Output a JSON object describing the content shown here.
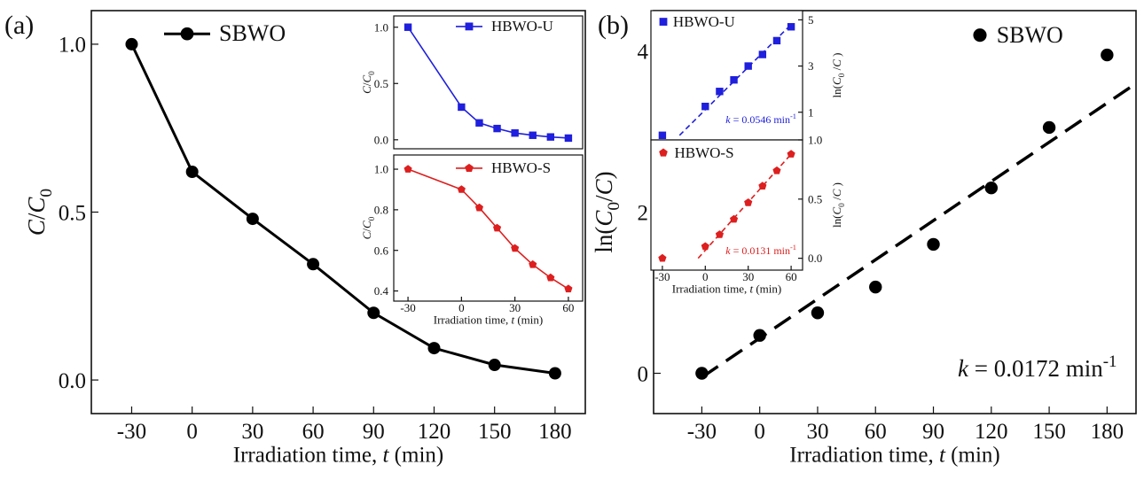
{
  "panel_labels": {
    "a": "(a)",
    "b": "(b)"
  },
  "chart_data": [
    {
      "id": "a_main",
      "type": "line",
      "panel": "(a)",
      "x": [
        -30,
        0,
        30,
        60,
        90,
        120,
        150,
        180
      ],
      "series": [
        {
          "name": "SBWO",
          "color": "#000000",
          "marker": "circle",
          "values": [
            1.0,
            0.62,
            0.48,
            0.345,
            0.2,
            0.095,
            0.045,
            0.02
          ]
        }
      ],
      "xlim": [
        -50,
        195
      ],
      "ylim": [
        -0.1,
        1.1
      ],
      "xticks": [
        -30,
        0,
        30,
        60,
        90,
        120,
        150,
        180
      ],
      "yticks": [
        0.0,
        0.5,
        1.0
      ],
      "ytick_labels": [
        "0.0",
        "0.5",
        "1.0"
      ],
      "xlabel": {
        "pre": "Irradiation time, ",
        "var": "t",
        "post": " (min)"
      },
      "ylabel": {
        "var": "C",
        "sep": "/",
        "var2": "C",
        "sub": "0"
      },
      "legend_position": "top-left",
      "grid": false
    },
    {
      "id": "a_inset_u",
      "type": "line",
      "panel": "(a) inset",
      "x": [
        -30,
        0,
        10,
        20,
        30,
        40,
        50,
        60
      ],
      "series": [
        {
          "name": "HBWO-U",
          "color": "#1f1fdd",
          "marker": "square",
          "values": [
            1.0,
            0.29,
            0.15,
            0.1,
            0.06,
            0.04,
            0.025,
            0.015
          ]
        }
      ],
      "xlim": [
        -38,
        68
      ],
      "ylim": [
        -0.08,
        1.1
      ],
      "yticks": [
        0.0,
        0.5,
        1.0
      ],
      "ytick_labels": [
        "0.0",
        "0.5",
        "1.0"
      ],
      "ylabel": {
        "var": "C",
        "sep": "/",
        "var2": "C",
        "sub": "0"
      },
      "legend_position": "top-right"
    },
    {
      "id": "a_inset_s",
      "type": "line",
      "panel": "(a) inset",
      "x": [
        -30,
        0,
        10,
        20,
        30,
        40,
        50,
        60
      ],
      "series": [
        {
          "name": "HBWO-S",
          "color": "#dd1f1f",
          "marker": "pentagon",
          "values": [
            1.0,
            0.9,
            0.81,
            0.71,
            0.61,
            0.53,
            0.465,
            0.41
          ]
        }
      ],
      "xlim": [
        -38,
        68
      ],
      "ylim": [
        0.35,
        1.07
      ],
      "xticks": [
        -30,
        0,
        30,
        60
      ],
      "yticks": [
        0.4,
        0.6,
        0.8,
        1.0
      ],
      "ytick_labels": [
        "0.4",
        "0.6",
        "0.8",
        "1.0"
      ],
      "xlabel": {
        "pre": "Irradiation time, ",
        "var": "t",
        "post": " (min)"
      },
      "ylabel": {
        "var": "C",
        "sep": "/",
        "var2": "C",
        "sub": "0"
      },
      "legend_position": "top-right"
    },
    {
      "id": "b_main",
      "type": "scatter",
      "panel": "(b)",
      "x": [
        -30,
        0,
        30,
        60,
        90,
        120,
        150,
        180
      ],
      "series": [
        {
          "name": "SBWO",
          "color": "#000000",
          "marker": "circle",
          "values": [
            0.0,
            0.47,
            0.75,
            1.07,
            1.6,
            2.3,
            3.05,
            3.95
          ]
        }
      ],
      "fit": {
        "x": [
          -30,
          194
        ],
        "y": [
          -0.05,
          3.58
        ],
        "style": "dashed",
        "color": "#000000"
      },
      "annotation": {
        "var": "k",
        "text": " = 0.0172 min",
        "sup": "-1"
      },
      "xlim": [
        -55,
        195
      ],
      "ylim": [
        -0.5,
        4.5
      ],
      "xticks": [
        -30,
        0,
        30,
        60,
        90,
        120,
        150,
        180
      ],
      "yticks": [
        0,
        2,
        4
      ],
      "ytick_labels": [
        "0",
        "2",
        "4"
      ],
      "xlabel": {
        "pre": "Irradiation time, ",
        "var": "t",
        "post": " (min)"
      },
      "ylabel": {
        "pre": "ln(",
        "var": "C",
        "sub": "0",
        "mid": "/",
        "var2": "C",
        "post": ")"
      },
      "legend_position": "top-right",
      "grid": false
    },
    {
      "id": "b_inset_u",
      "type": "scatter",
      "panel": "(b) inset",
      "x": [
        -30,
        0,
        10,
        20,
        30,
        40,
        50,
        60
      ],
      "series": [
        {
          "name": "HBWO-U",
          "color": "#1f1fdd",
          "marker": "square",
          "values": [
            0.0,
            1.25,
            1.9,
            2.4,
            3.0,
            3.5,
            4.1,
            4.7
          ]
        }
      ],
      "fit": {
        "x": [
          -18,
          60
        ],
        "y": [
          0.0,
          4.8
        ],
        "style": "dashed",
        "color": "#1f1fdd"
      },
      "annotation": {
        "var": "k",
        "text": " = 0.0546 min",
        "sup": "-1"
      },
      "xlim": [
        -38,
        68
      ],
      "ylim": [
        -0.2,
        5.4
      ],
      "yticks": [
        1,
        3,
        5
      ],
      "ytick_labels": [
        "1",
        "3",
        "5"
      ],
      "ylabel": {
        "pre": "ln(",
        "var": "C",
        "sub": "0",
        "mid": " /",
        "var2": "C",
        "post": " )"
      },
      "legend_position": "top-left"
    },
    {
      "id": "b_inset_s",
      "type": "scatter",
      "panel": "(b) inset",
      "x": [
        -30,
        0,
        10,
        20,
        30,
        40,
        50,
        60
      ],
      "series": [
        {
          "name": "HBWO-S",
          "color": "#dd1f1f",
          "marker": "pentagon",
          "values": [
            0.0,
            0.1,
            0.2,
            0.33,
            0.47,
            0.61,
            0.74,
            0.88
          ]
        }
      ],
      "fit": {
        "x": [
          -5,
          60
        ],
        "y": [
          0.0,
          0.88
        ],
        "style": "dashed",
        "color": "#dd1f1f"
      },
      "annotation": {
        "var": "k",
        "text": " = 0.0131 min",
        "sup": "-1"
      },
      "xlim": [
        -38,
        68
      ],
      "ylim": [
        -0.1,
        1.0
      ],
      "xticks": [
        -30,
        0,
        30,
        60
      ],
      "yticks": [
        0.0,
        0.5,
        1.0
      ],
      "ytick_labels": [
        "0.0",
        "0.5",
        "1.0"
      ],
      "xlabel": {
        "pre": "Irradiation time, ",
        "var": "t",
        "post": " (min)"
      },
      "ylabel": {
        "pre": "ln(",
        "var": "C",
        "sub": "0",
        "mid": " /",
        "var2": "C",
        "post": " )"
      },
      "legend_position": "top-left"
    }
  ]
}
